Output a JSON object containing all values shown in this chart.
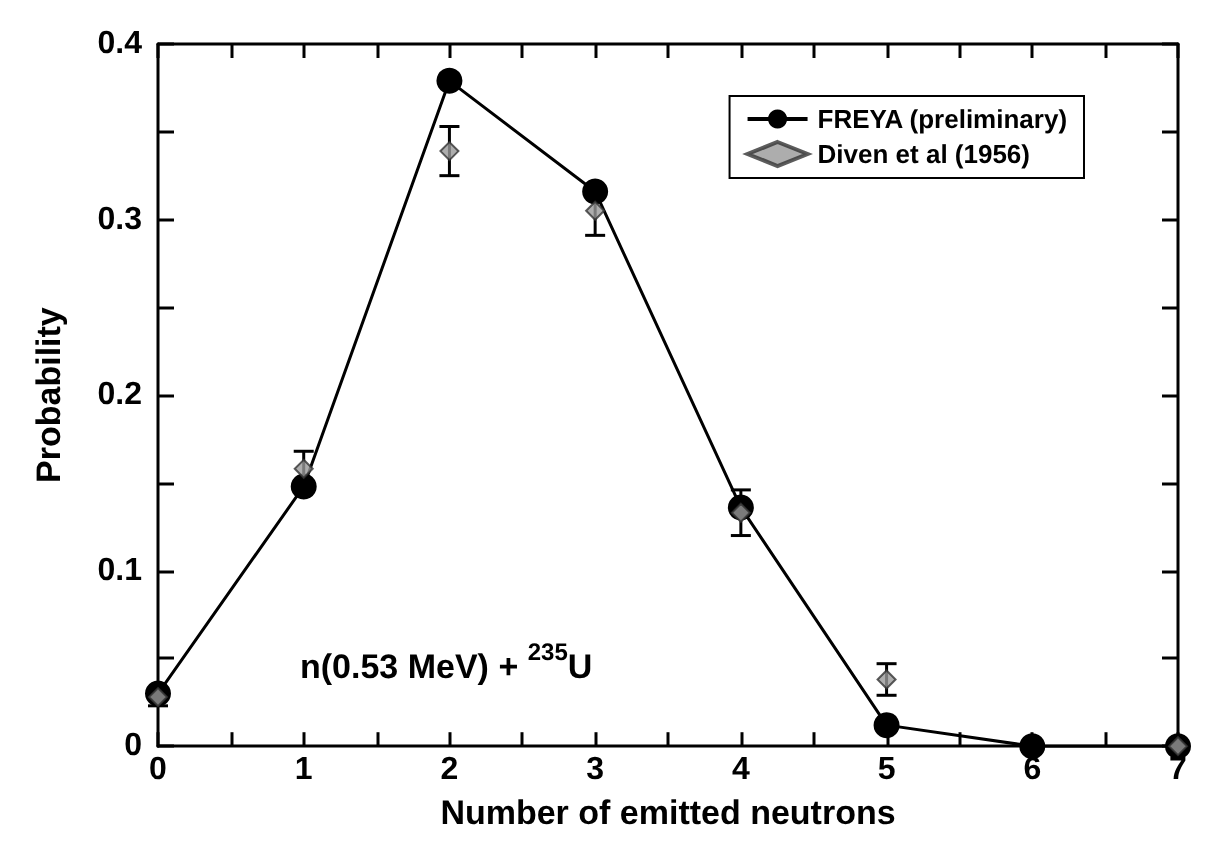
{
  "chart_data": {
    "type": "line",
    "xlabel": "Number of emitted neutrons",
    "ylabel": "Probability",
    "x": [
      0,
      1,
      2,
      3,
      4,
      5,
      6,
      7
    ],
    "series": [
      {
        "name": "FREYA (preliminary)",
        "color": "#000000",
        "marker": "circle",
        "line_style": "solid",
        "values": [
          0.03,
          0.148,
          0.379,
          0.316,
          0.136,
          0.012,
          0.0,
          0.0
        ]
      },
      {
        "name": "Diven et al (1956)",
        "type": "scatter",
        "color": "#999999",
        "marker": "diamond",
        "values": [
          0.028,
          0.158,
          0.339,
          0.305,
          0.133,
          0.038,
          null,
          0.0
        ],
        "errors": [
          0.005,
          0.01,
          0.014,
          0.014,
          0.013,
          0.009,
          null,
          null
        ]
      }
    ],
    "xlim": [
      0,
      7
    ],
    "xticks": [
      0,
      1,
      2,
      3,
      4,
      5,
      6,
      7
    ],
    "ylim": [
      0,
      0.4
    ],
    "yticks": [
      0,
      0.1,
      0.2,
      0.3,
      0.4
    ],
    "grid": false,
    "legend": "top right",
    "annotations": [
      "n(0.53 MeV) + $^{235}$U"
    ]
  }
}
